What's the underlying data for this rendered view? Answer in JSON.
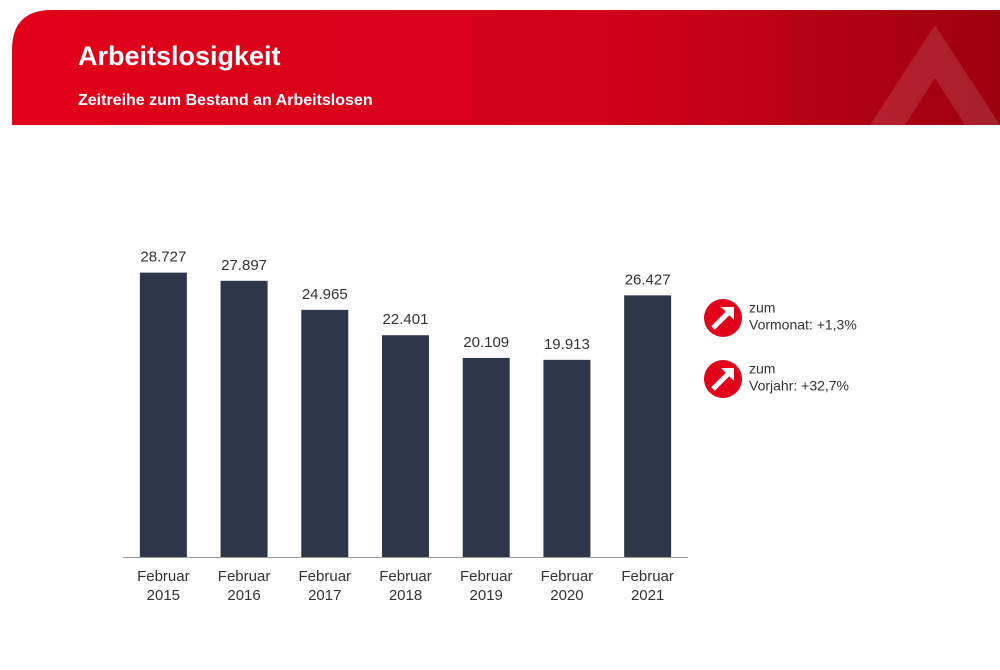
{
  "chart_data": {
    "type": "bar",
    "title": "Arbeitslosigkeit",
    "subtitle": "Zeitreihe zum Bestand an Arbeitslosen",
    "categories": [
      [
        "Februar",
        "2015"
      ],
      [
        "Februar",
        "2016"
      ],
      [
        "Februar",
        "2017"
      ],
      [
        "Februar",
        "2018"
      ],
      [
        "Februar",
        "2019"
      ],
      [
        "Februar",
        "2020"
      ],
      [
        "Februar",
        "2021"
      ]
    ],
    "values": [
      28727,
      27897,
      24965,
      22401,
      20109,
      19913,
      26427
    ],
    "value_labels": [
      "28.727",
      "27.897",
      "24.965",
      "22.401",
      "20.109",
      "19.913",
      "26.427"
    ],
    "color": "#2f3649",
    "ylim": [
      0,
      30000
    ],
    "annotations": [
      {
        "lines": [
          "zum",
          "Vormonat: +1,3%"
        ]
      },
      {
        "lines": [
          "zum",
          "Vorjahr: +32,7%"
        ]
      }
    ]
  }
}
